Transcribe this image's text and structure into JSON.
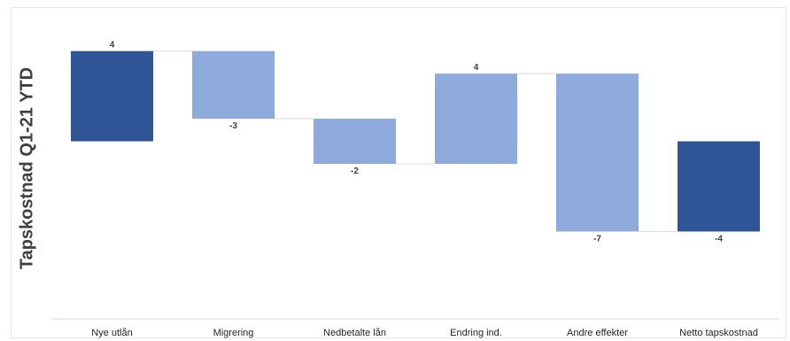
{
  "chart_data": {
    "type": "bar",
    "subtype": "waterfall",
    "ylabel": "Tapskostnad Q1-21 YTD",
    "categories": [
      "Nye utlån",
      "Migrering",
      "Nedbetalte lån",
      "Endring ind.",
      "Andre effekter",
      "Netto tapskostnad"
    ],
    "values": [
      4,
      -3,
      -2,
      4,
      -7,
      -4
    ],
    "value_labels": [
      "4",
      "-3",
      "-2",
      "4",
      "-7",
      "-4"
    ],
    "kinds": [
      "total",
      "delta",
      "delta",
      "delta",
      "delta",
      "total"
    ],
    "ylim": [
      -7.4,
      4.3
    ],
    "grid": false,
    "legend": false,
    "colors": {
      "total": "#2F5597",
      "delta": "#8FAADC",
      "connector": "#d9d9d9",
      "axis": "#d9d9d9"
    }
  }
}
